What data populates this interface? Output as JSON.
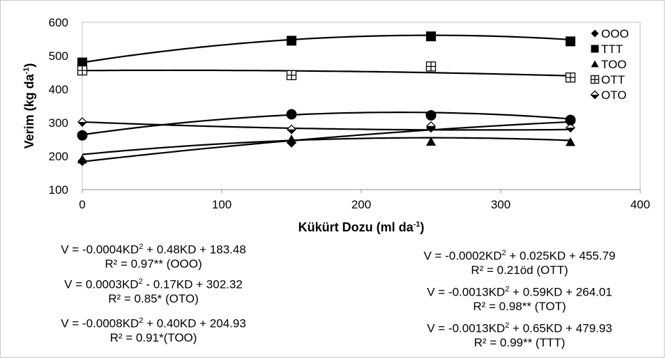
{
  "chart_data": {
    "type": "scatter",
    "title": "",
    "xlabel": "Kükürt Dozu (ml da",
    "xlabel_sup": "-1",
    "xlabel_end": ")",
    "ylabel": "Verim (kg da",
    "ylabel_sup": "-1",
    "ylabel_end": ")",
    "xlim": [
      0,
      400
    ],
    "ylim": [
      100,
      600
    ],
    "xticks": [
      0,
      100,
      200,
      300,
      400
    ],
    "yticks": [
      100,
      200,
      300,
      400,
      500,
      600
    ],
    "grid": false,
    "legend_position": "top-right",
    "x": [
      0,
      150,
      250,
      350
    ],
    "series": [
      {
        "name": "OOO",
        "marker": "diamond",
        "values": [
          185,
          240,
          285,
          300
        ],
        "fit": [
          -0.0004,
          0.48,
          183.48
        ]
      },
      {
        "name": "TTT",
        "marker": "square",
        "values": [
          480,
          545,
          558,
          543
        ],
        "fit": [
          -0.0013,
          0.65,
          479.93
        ]
      },
      {
        "name": "TOO",
        "marker": "triangle",
        "values": [
          190,
          250,
          243,
          242
        ],
        "fit": [
          -0.0008,
          0.4,
          204.93
        ]
      },
      {
        "name": "OTT",
        "marker": "square-plus",
        "values": [
          456,
          442,
          468,
          435
        ],
        "fit": [
          -0.0002,
          0.025,
          455.79
        ]
      },
      {
        "name": "OTO",
        "marker": "open-diamond",
        "values": [
          302,
          280,
          290,
          285
        ],
        "fit": [
          0.0003,
          -0.17,
          302.32
        ]
      },
      {
        "name": "TOT",
        "marker": "circle",
        "values": [
          262,
          325,
          322,
          308
        ],
        "fit": [
          -0.0013,
          0.59,
          264.01
        ]
      }
    ]
  },
  "equations": {
    "left": [
      {
        "eq_a": "V = -0.0004KD",
        "eq_b": " + 0.48KD + 183.48",
        "r2": "R² = 0.97** (OOO)"
      },
      {
        "eq_a": "V = 0.0003KD",
        "eq_b": " - 0.17KD + 302.32",
        "r2": "R² = 0.85* (OTO)"
      },
      {
        "eq_a": "V = -0.0008KD",
        "eq_b": " + 0.40KD + 204.93",
        "r2": "R² = 0.91*(TOO)"
      }
    ],
    "right": [
      {
        "eq_a": "V = -0.0002KD",
        "eq_b": " + 0.025KD + 455.79",
        "r2": "R² = 0.21öd (OTT)"
      },
      {
        "eq_a": "V = -0.0013KD",
        "eq_b": " + 0.59KD + 264.01",
        "r2": "R² = 0.98** (TOT)"
      },
      {
        "eq_a": "V = -0.0013KD",
        "eq_b": " + 0.65KD + 479.93",
        "r2": "R² = 0.99** (TTT)"
      }
    ],
    "sup": "2"
  }
}
